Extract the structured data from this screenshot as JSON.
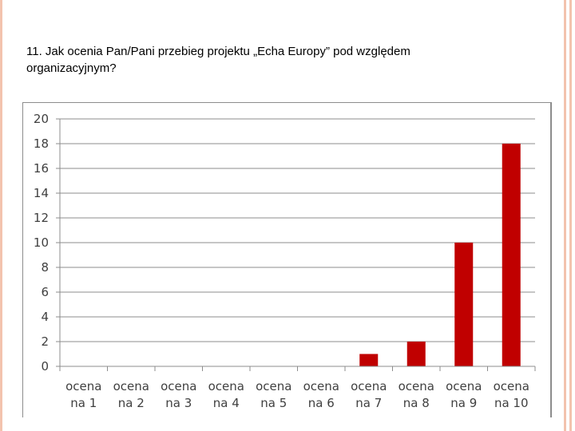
{
  "slide": {
    "question_line1": "11. Jak ocenia Pan/Pani przebieg projektu „Echa Europy” pod względem",
    "question_line2": "organizacyjnym?",
    "decor_color": "#f3c3ae"
  },
  "chart_data": {
    "type": "bar",
    "categories": [
      [
        "ocena",
        "na 1"
      ],
      [
        "ocena",
        "na 2"
      ],
      [
        "ocena",
        "na 3"
      ],
      [
        "ocena",
        "na 4"
      ],
      [
        "ocena",
        "na 5"
      ],
      [
        "ocena",
        "na 6"
      ],
      [
        "ocena",
        "na 7"
      ],
      [
        "ocena",
        "na 8"
      ],
      [
        "ocena",
        "na 9"
      ],
      [
        "ocena",
        "na 10"
      ]
    ],
    "values": [
      0,
      0,
      0,
      0,
      0,
      0,
      1,
      2,
      10,
      18
    ],
    "title": "",
    "xlabel": "",
    "ylabel": "",
    "ylim": [
      0,
      20
    ],
    "yticks": [
      0,
      2,
      4,
      6,
      8,
      10,
      12,
      14,
      16,
      18,
      20
    ],
    "grid": true,
    "legend": "none",
    "bar_color": "#c00000"
  }
}
